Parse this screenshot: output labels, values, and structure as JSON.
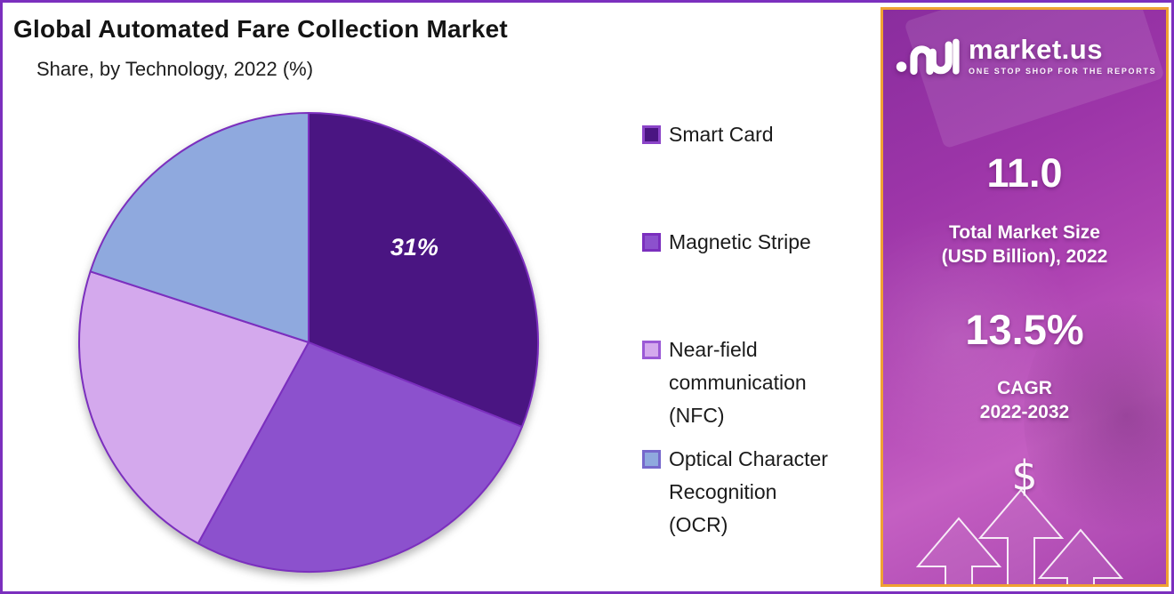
{
  "frame": {
    "border_color": "#7B2FBE",
    "background": "#FFFFFF"
  },
  "header": {
    "title": "Global Automated Fare Collection Market",
    "subtitle": "Share, by Technology, 2022 (%)"
  },
  "chart_data": {
    "type": "pie",
    "title": "Global Automated Fare Collection Market",
    "subtitle": "Share, by Technology, 2022 (%)",
    "unit": "%",
    "direction": "clockwise",
    "start_angle_deg": 0,
    "legend_position": "right",
    "outline_color": "#7B2FBE",
    "data_label_color": "#FFFFFF",
    "slices": [
      {
        "label": "Smart Card",
        "value": 31,
        "color": "#4A1582",
        "data_label": "31%",
        "legend_lines": [
          "Smart Card"
        ],
        "marker_border": "#8B44C8"
      },
      {
        "label": "Magnetic Stripe",
        "value": 27,
        "color": "#8C51CD",
        "data_label": "",
        "legend_lines": [
          "Magnetic Stripe"
        ],
        "marker_border": "#7B2FBE"
      },
      {
        "label": "Near-field communication (NFC)",
        "value": 22,
        "color": "#D4A9ED",
        "data_label": "",
        "legend_lines": [
          "Near-field",
          "communication",
          "(NFC)"
        ],
        "marker_border": "#9B59D6"
      },
      {
        "label": "Optical Character Recognition (OCR)",
        "value": 20,
        "color": "#8FA9DE",
        "data_label": "",
        "legend_lines": [
          "Optical Character",
          "Recognition",
          "(OCR)"
        ],
        "marker_border": "#7668CC"
      }
    ]
  },
  "sidebar": {
    "logo": {
      "brand": "market.us",
      "tagline": "ONE STOP SHOP FOR THE REPORTS"
    },
    "market_size": {
      "value": "11.0",
      "label_line1": "Total Market Size",
      "label_line2": "(USD Billion), 2022"
    },
    "cagr": {
      "value": "13.5%",
      "label_line1": "CAGR",
      "label_line2": "2022-2032"
    },
    "dollar_symbol": "$",
    "colors": {
      "border": "#F0A232",
      "background_top": "#8A2D9E",
      "background_bottom": "#C45FC2"
    }
  }
}
